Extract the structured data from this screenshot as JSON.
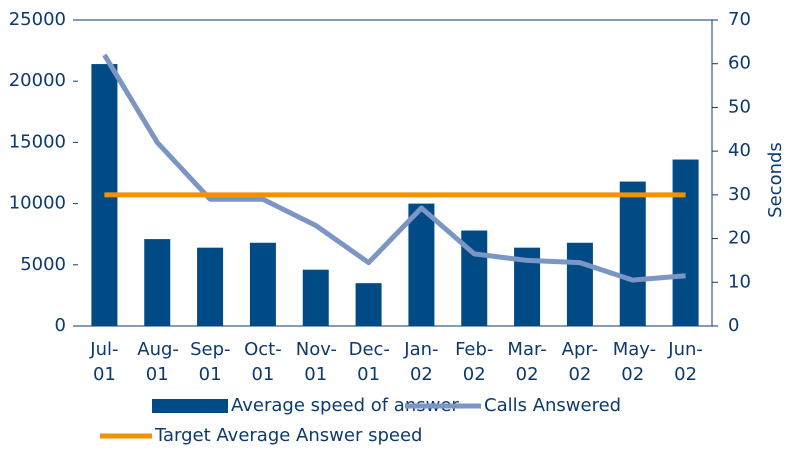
{
  "chart_data": {
    "type": "bar",
    "categories": [
      "Jul-01",
      "Aug-01",
      "Sep-01",
      "Oct-01",
      "Nov-01",
      "Dec-01",
      "Jan-02",
      "Feb-02",
      "Mar-02",
      "Apr-02",
      "May-02",
      "Jun-02"
    ],
    "series": [
      {
        "name": "Average speed of answer",
        "type": "bar",
        "color": "#004a86",
        "values": [
          21400,
          7100,
          6400,
          6800,
          4600,
          3500,
          10000,
          7800,
          6400,
          6800,
          11800,
          13600
        ]
      },
      {
        "name": "Calls Answered",
        "type": "line",
        "axis": "y2",
        "color": "#7b96c4",
        "values": [
          62,
          42,
          29,
          29,
          23,
          14.5,
          27,
          16.5,
          15,
          14.5,
          10.5,
          11.5
        ]
      },
      {
        "name": "Target Average Answer speed",
        "type": "line",
        "axis": "y2",
        "color": "#f39200",
        "values": [
          30,
          30,
          30,
          30,
          30,
          30,
          30,
          30,
          30,
          30,
          30,
          30
        ]
      }
    ],
    "ylim": [
      0,
      25000
    ],
    "yticks": [
      0,
      5000,
      10000,
      15000,
      20000,
      25000
    ],
    "y2lim": [
      0,
      70
    ],
    "y2ticks": [
      0,
      10,
      20,
      30,
      40,
      50,
      60,
      70
    ],
    "y2label": "Seconds"
  }
}
